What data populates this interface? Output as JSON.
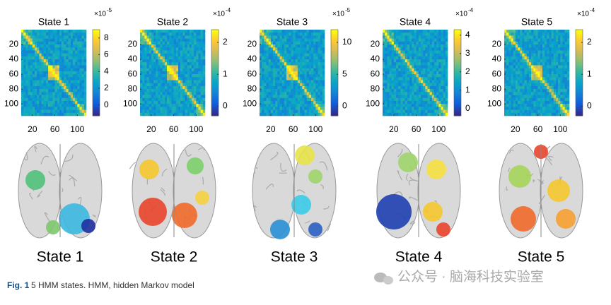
{
  "panels": [
    {
      "title": "State 1",
      "exponent_label": "×10",
      "exponent": "-5",
      "colorbar_lim": [
        -1.3,
        9
      ],
      "colorbar_ticks": [
        0,
        2,
        4,
        6,
        8
      ],
      "brain_label": "State 1"
    },
    {
      "title": "State 2",
      "exponent_label": "×10",
      "exponent": "-4",
      "colorbar_lim": [
        -0.3,
        2.4
      ],
      "colorbar_ticks": [
        0,
        1,
        2
      ],
      "brain_label": "State 2"
    },
    {
      "title": "State 3",
      "exponent_label": "×10",
      "exponent": "-5",
      "colorbar_lim": [
        -1.5,
        12
      ],
      "colorbar_ticks": [
        0,
        5,
        10
      ],
      "brain_label": "State 3"
    },
    {
      "title": "State 4",
      "exponent_label": "×10",
      "exponent": "-4",
      "colorbar_lim": [
        -0.4,
        4.3
      ],
      "colorbar_ticks": [
        0,
        1,
        2,
        3,
        4
      ],
      "brain_label": "State 4"
    },
    {
      "title": "State 5",
      "exponent_label": "×10",
      "exponent": "-4",
      "colorbar_lim": [
        -0.3,
        2.4
      ],
      "colorbar_ticks": [
        0,
        1,
        2
      ],
      "brain_label": "State 5"
    }
  ],
  "matrix_lim": [
    0,
    116
  ],
  "matrix_yticks": [
    20,
    40,
    60,
    80,
    100
  ],
  "matrix_xticks": [
    20,
    60,
    100
  ],
  "caption": {
    "label": "Fig. 1",
    "text": "5 HMM states. HMM, hidden Markov model"
  },
  "watermark": "公众号 · 脑海科技实验室"
}
